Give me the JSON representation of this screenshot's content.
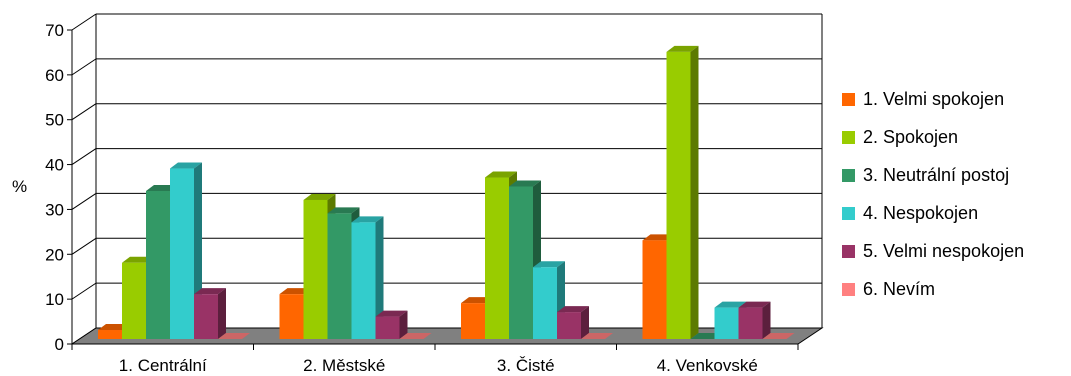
{
  "chart_data": {
    "type": "bar",
    "ylabel": "%",
    "xlabel": "",
    "ylim": [
      0,
      70
    ],
    "yticks": [
      0,
      10,
      20,
      30,
      40,
      50,
      60,
      70
    ],
    "grid": true,
    "legend_position": "right",
    "categories": [
      "1. Centrální",
      "2. Městské",
      "3. Čisté",
      "4. Venkovské"
    ],
    "series": [
      {
        "name": "1. Velmi spokojen",
        "color": "#ff6600",
        "values": [
          2,
          10,
          8,
          22
        ]
      },
      {
        "name": "2. Spokojen",
        "color": "#99cc00",
        "values": [
          17,
          31,
          36,
          64
        ]
      },
      {
        "name": "3. Neutrální postoj",
        "color": "#339966",
        "values": [
          33,
          28,
          34,
          0
        ]
      },
      {
        "name": "4. Nespokojen",
        "color": "#33cccc",
        "values": [
          38,
          26,
          16,
          7
        ]
      },
      {
        "name": "5. Velmi nespokojen",
        "color": "#993366",
        "values": [
          10,
          5,
          6,
          7
        ]
      },
      {
        "name": "6. Nevím",
        "color": "#ff8080",
        "values": [
          0,
          0,
          0,
          0
        ]
      }
    ]
  }
}
